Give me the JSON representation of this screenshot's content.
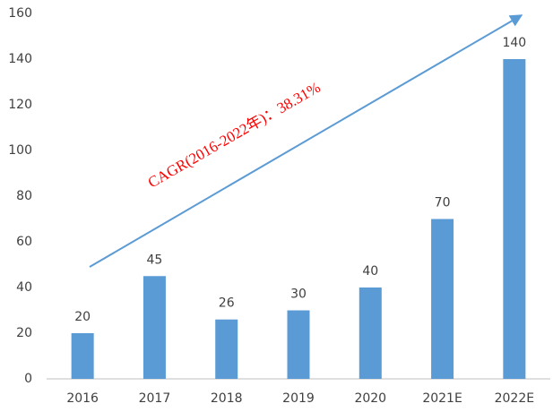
{
  "chart_data": {
    "type": "bar",
    "categories": [
      "2016",
      "2017",
      "2018",
      "2019",
      "2020",
      "2021E",
      "2022E"
    ],
    "values": [
      20,
      45,
      26,
      30,
      40,
      70,
      140
    ],
    "color": "#5b9bd5",
    "ylim": [
      0,
      160
    ],
    "yticks": [
      0,
      20,
      40,
      60,
      80,
      100,
      120,
      140,
      160
    ],
    "grid": false,
    "annotation": "CAGR(2016-2022年)：38.31%"
  }
}
